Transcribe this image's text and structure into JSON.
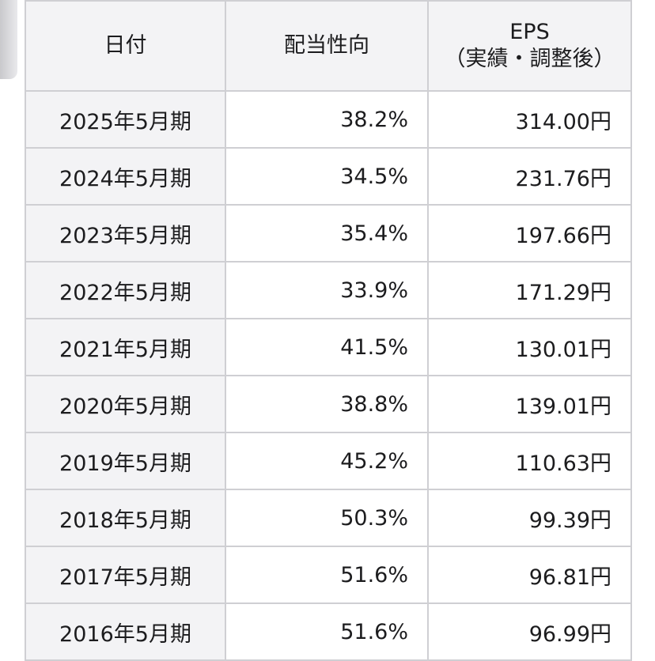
{
  "table": {
    "headers": {
      "date": "日付",
      "payout_ratio": "配当性向",
      "eps_line1": "EPS",
      "eps_line2": "（実績・調整後）"
    },
    "rows": [
      {
        "date": "2025年5月期",
        "payout_ratio": "38.2%",
        "eps": "314.00円"
      },
      {
        "date": "2024年5月期",
        "payout_ratio": "34.5%",
        "eps": "231.76円"
      },
      {
        "date": "2023年5月期",
        "payout_ratio": "35.4%",
        "eps": "197.66円"
      },
      {
        "date": "2022年5月期",
        "payout_ratio": "33.9%",
        "eps": "171.29円"
      },
      {
        "date": "2021年5月期",
        "payout_ratio": "41.5%",
        "eps": "130.01円"
      },
      {
        "date": "2020年5月期",
        "payout_ratio": "38.8%",
        "eps": "139.01円"
      },
      {
        "date": "2019年5月期",
        "payout_ratio": "45.2%",
        "eps": "110.63円"
      },
      {
        "date": "2018年5月期",
        "payout_ratio": "50.3%",
        "eps": "99.39円"
      },
      {
        "date": "2017年5月期",
        "payout_ratio": "51.6%",
        "eps": "96.81円"
      },
      {
        "date": "2016年5月期",
        "payout_ratio": "51.6%",
        "eps": "96.99円"
      }
    ]
  }
}
